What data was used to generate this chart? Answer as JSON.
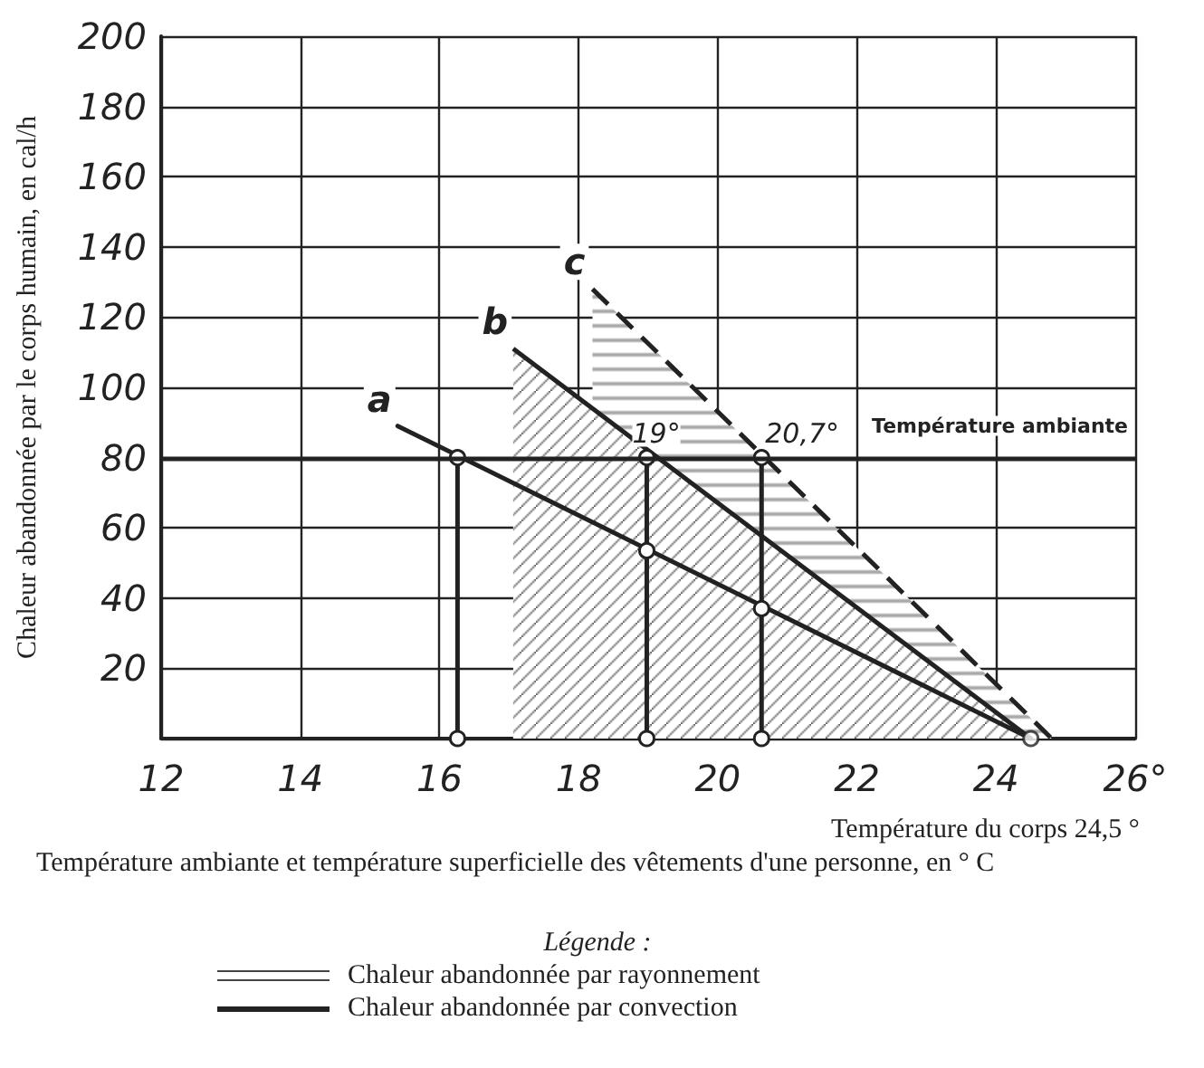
{
  "chart_data": {
    "type": "line",
    "xlabel": "Température ambiante et température superficielle des vêtements d'une personne, en ° C",
    "ylabel": "Chaleur abandonnée par le corps humain, en cal/h",
    "xlim": [
      12,
      26
    ],
    "ylim": [
      0,
      200
    ],
    "xticks": [
      12,
      14,
      16,
      18,
      20,
      22,
      24,
      {
        "value": 26,
        "label": "26°"
      }
    ],
    "yticks": [
      {
        "value": 0,
        "label": null
      },
      20,
      40,
      60,
      80,
      100,
      120,
      140,
      160,
      180,
      200
    ],
    "grid": true,
    "series": [
      {
        "name": "c",
        "type": "area",
        "line_style": "dashed",
        "color": "#222222",
        "x": [
          18.2,
          24.8
        ],
        "values": [
          128,
          0
        ]
      },
      {
        "name": "b",
        "type": "area",
        "line_style": "solid",
        "color": "#222222",
        "x": [
          17.06,
          24.5
        ],
        "values": [
          111,
          0
        ]
      },
      {
        "name": "a",
        "line_style": "solid",
        "color": "#222222",
        "x": [
          15.4,
          24.5
        ],
        "values": [
          89,
          0
        ]
      },
      {
        "marker": "circle",
        "line_style": "solid",
        "color": "#222222",
        "x": [
          16.26,
          16.26
        ],
        "values": [
          0,
          80
        ]
      },
      {
        "marker": "circle",
        "line_style": "solid",
        "color": "#222222",
        "x": [
          18.98,
          18.98,
          18.98
        ],
        "values": [
          0,
          53.5,
          80
        ]
      },
      {
        "marker": "circle",
        "line_style": "solid",
        "color": "#222222",
        "x": [
          20.63,
          20.63,
          20.63
        ],
        "values": [
          0,
          37,
          80
        ]
      },
      {
        "type": "scatter",
        "marker": "circle",
        "color": "#222222",
        "x": [
          24.5
        ],
        "values": [
          0
        ]
      }
    ],
    "ref_lines": [
      {
        "axis": "y",
        "value": 80,
        "label": "Température ambiante",
        "color": "#222222"
      }
    ],
    "annotations": [
      {
        "text": "19°",
        "x": 18.98,
        "y": 80
      },
      {
        "text": "20,7°",
        "x": 20.63,
        "y": 80
      },
      {
        "text": "Température du corps 24,5 °",
        "x": 24.5,
        "y": 0
      },
      "Légende :",
      "Chaleur abandonnée par rayonnement",
      "Chaleur abandonnée par convection"
    ]
  }
}
